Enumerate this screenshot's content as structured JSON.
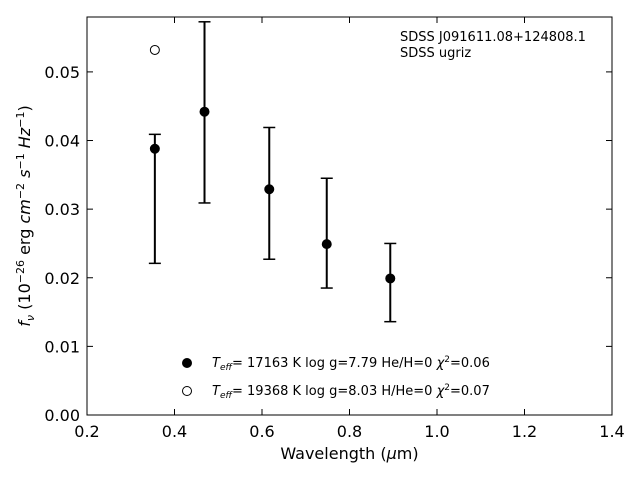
{
  "chart_data": {
    "type": "scatter",
    "annotation": [
      "SDSS J091611.08+124808.1",
      "SDSS ugriz"
    ],
    "xlabel": "Wavelength (μm)",
    "ylabel": "f_ν (10^-26 erg cm^-2 s^-1 Hz^-1)",
    "xlim": [
      0.2,
      1.4
    ],
    "ylim": [
      0.0,
      0.058
    ],
    "xticks": [
      0.2,
      0.4,
      0.6,
      0.8,
      1.0,
      1.2,
      1.4
    ],
    "xtick_labels": [
      "0.2",
      "0.4",
      "0.6",
      "0.8",
      "1.0",
      "1.2",
      "1.4"
    ],
    "yticks": [
      0.0,
      0.01,
      0.02,
      0.03,
      0.04,
      0.05
    ],
    "ytick_labels": [
      "0.00",
      "0.01",
      "0.02",
      "0.03",
      "0.04",
      "0.05"
    ],
    "grid": false,
    "legend_position": "bottom-center",
    "series": [
      {
        "name": "T_eff= 17163 K  log g=7.79  He/H=0  χ²=0.06",
        "marker": "filled-circle",
        "color": "#000000",
        "points": [
          {
            "x": 0.3551,
            "y": 0.0388,
            "ylow": 0.0221,
            "yhigh": 0.0409
          },
          {
            "x": 0.4686,
            "y": 0.0442,
            "ylow": 0.0309,
            "yhigh": 0.0573
          },
          {
            "x": 0.6166,
            "y": 0.0329,
            "ylow": 0.0227,
            "yhigh": 0.0419
          },
          {
            "x": 0.748,
            "y": 0.0249,
            "ylow": 0.0185,
            "yhigh": 0.0345
          },
          {
            "x": 0.8932,
            "y": 0.0199,
            "ylow": 0.0136,
            "yhigh": 0.025
          }
        ]
      },
      {
        "name": "T_eff= 19368 K  log g=8.03  H/He=0  χ²=0.07",
        "marker": "open-circle",
        "color": "#000000",
        "points": [
          {
            "x": 0.3551,
            "y": 0.0532
          }
        ]
      }
    ]
  }
}
